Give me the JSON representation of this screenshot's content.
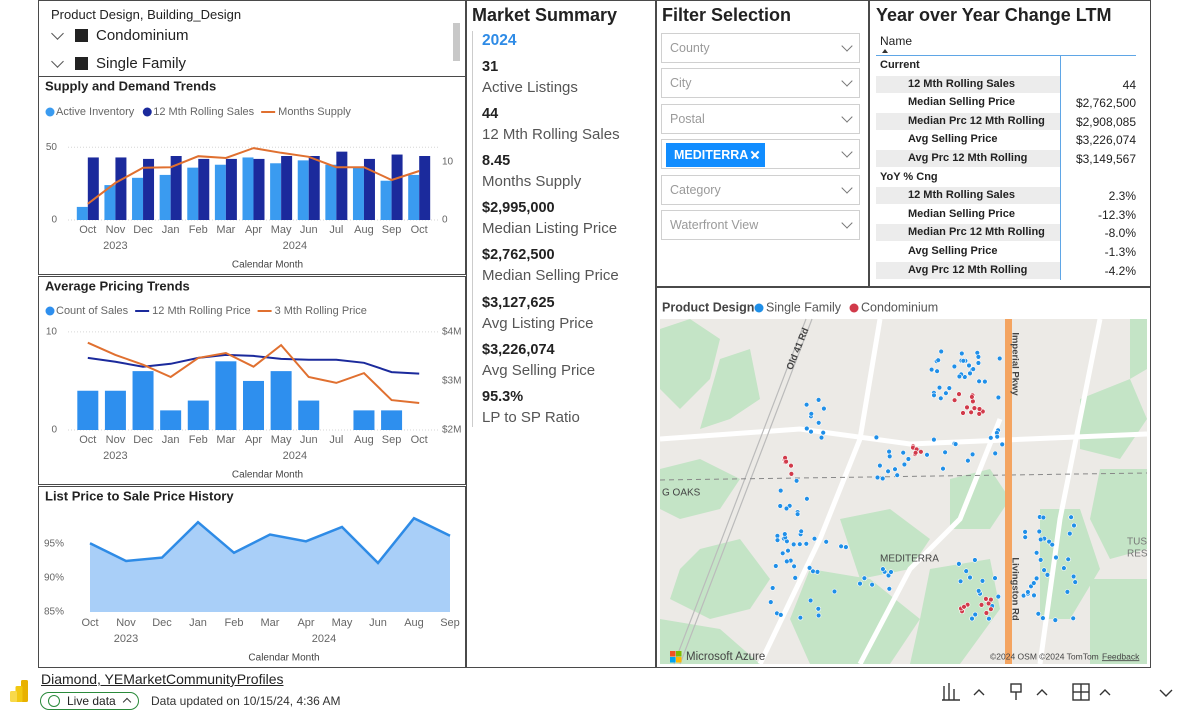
{
  "slicer": {
    "title": "Product Design, Building_Design",
    "items": [
      "Condominium",
      "Single Family"
    ]
  },
  "chart_data": [
    {
      "type": "combo",
      "title": "Supply and Demand Trends",
      "categories": [
        "Oct",
        "Nov",
        "Dec",
        "Jan",
        "Feb",
        "Mar",
        "Apr",
        "May",
        "Jun",
        "Jul",
        "Aug",
        "Sep",
        "Oct"
      ],
      "year_labels": [
        "2023",
        "2024"
      ],
      "x_label": "Calendar Month",
      "series": [
        {
          "name": "Active Inventory",
          "kind": "bar",
          "color": "#3a9bf0",
          "values": [
            9,
            24,
            29,
            31,
            36,
            38,
            43,
            39,
            41,
            38,
            36,
            27,
            31
          ]
        },
        {
          "name": "12 Mth Rolling Sales",
          "kind": "bar",
          "color": "#1b2a9c",
          "values": [
            43,
            43,
            42,
            44,
            42,
            42,
            42,
            44,
            44,
            47,
            42,
            45,
            44
          ]
        },
        {
          "name": "Months Supply",
          "kind": "line",
          "axis": "y2",
          "color": "#e07030",
          "values": [
            2.8,
            6.4,
            9.0,
            9.1,
            11.0,
            10.7,
            12.4,
            11.6,
            10.9,
            9.1,
            9.1,
            6.9,
            8.45
          ]
        }
      ],
      "ylim": [
        0,
        55
      ],
      "yticks": [
        0,
        50
      ],
      "y2lim": [
        0,
        13.8
      ],
      "y2ticks": [
        0,
        10
      ],
      "grid": true
    },
    {
      "type": "combo",
      "title": "Average Pricing Trends",
      "categories": [
        "Oct",
        "Nov",
        "Dec",
        "Jan",
        "Feb",
        "Mar",
        "Apr",
        "May",
        "Jun",
        "Jul",
        "Aug",
        "Sep",
        "Oct"
      ],
      "year_labels": [
        "2023",
        "2024"
      ],
      "x_label": "Calendar Month",
      "series": [
        {
          "name": "Count of Sales",
          "kind": "bar",
          "color": "#2e8fee",
          "values": [
            4,
            4,
            6,
            2,
            3,
            7,
            5,
            6,
            3,
            0,
            2,
            2,
            0
          ]
        },
        {
          "name": "12 Mth Rolling Price",
          "kind": "line",
          "axis": "y2",
          "color": "#1b2a9c",
          "values": [
            3470000,
            3390000,
            3290000,
            3350000,
            3470000,
            3530000,
            3510000,
            3450000,
            3430000,
            3430000,
            3370000,
            3180000,
            3149567
          ]
        },
        {
          "name": "3 Mth Rolling Price",
          "kind": "line",
          "axis": "y2",
          "color": "#e07030",
          "values": [
            3780000,
            3530000,
            3330000,
            3080000,
            3470000,
            3570000,
            3290000,
            3730000,
            3080000,
            2960000,
            3160000,
            2610000,
            2550000
          ]
        }
      ],
      "ylim": [
        0,
        10.7
      ],
      "yticks": [
        0,
        10
      ],
      "y2lim": [
        2000000,
        4140000
      ],
      "y2ticks": [
        {
          "value": 2000000,
          "label": "$2M"
        },
        {
          "value": 3000000,
          "label": "$3M"
        },
        {
          "value": 4000000,
          "label": "$4M"
        }
      ],
      "grid": true
    },
    {
      "type": "area",
      "title": "List Price to Sale Price History",
      "categories": [
        "Oct",
        "Nov",
        "Dec",
        "Jan",
        "Feb",
        "Mar",
        "Apr",
        "May",
        "Jun",
        "Aug",
        "Sep"
      ],
      "year_labels": [
        "2023",
        "2024"
      ],
      "x_label": "Calendar Month",
      "values": [
        95.1,
        92.5,
        93.0,
        98.2,
        93.7,
        96.4,
        95.4,
        97.5,
        92.2,
        98.8,
        96.2
      ],
      "color": "#2e8be6",
      "area_color": "#a9cff8",
      "ylim": [
        85,
        100
      ],
      "yticks": [
        {
          "value": 85,
          "label": "85%"
        },
        {
          "value": 90,
          "label": "90%"
        },
        {
          "value": 95,
          "label": "95%"
        }
      ],
      "grid": false
    }
  ],
  "market_summary": {
    "title": "Market Summary",
    "year": "2024",
    "items": [
      {
        "value": "31",
        "label": "Active Listings"
      },
      {
        "value": "44",
        "label": "12 Mth Rolling Sales"
      },
      {
        "value": "8.45",
        "label": "Months Supply"
      },
      {
        "value": "$2,995,000",
        "label": "Median Listing Price"
      },
      {
        "value": "$2,762,500",
        "label": "Median Selling Price"
      },
      {
        "value": "$3,127,625",
        "label": "Avg Listing Price"
      },
      {
        "value": "$3,226,074",
        "label": "Avg Selling Price"
      },
      {
        "value": "95.3%",
        "label": "LP to SP Ratio"
      }
    ]
  },
  "filter": {
    "title": "Filter Selection",
    "dropdowns": [
      {
        "placeholder": "County"
      },
      {
        "placeholder": "City"
      },
      {
        "placeholder": "Postal"
      },
      {
        "chip": "MEDITERRA"
      },
      {
        "placeholder": "Category"
      },
      {
        "placeholder": "Waterfront View"
      }
    ]
  },
  "yoy": {
    "title": "Year over Year Change LTM",
    "header": "Name",
    "groups": [
      {
        "name": "Current",
        "rows": [
          [
            "12 Mth Rolling Sales",
            "44"
          ],
          [
            "Median Selling Price",
            "$2,762,500"
          ],
          [
            "Median Prc 12 Mth Rolling",
            "$2,908,085"
          ],
          [
            "Avg Selling Price",
            "$3,226,074"
          ],
          [
            "Avg Prc 12 Mth Rolling",
            "$3,149,567"
          ]
        ]
      },
      {
        "name": "YoY % Cng",
        "rows": [
          [
            "12 Mth Rolling Sales",
            "2.3%"
          ],
          [
            "Median Selling Price",
            "-12.3%"
          ],
          [
            "Median Prc 12 Mth Rolling",
            "-8.0%"
          ],
          [
            "Avg Selling Price",
            "-1.3%"
          ],
          [
            "Avg Prc 12 Mth Rolling",
            "-4.2%"
          ]
        ]
      }
    ]
  },
  "map": {
    "title": "Product Design",
    "legend": [
      {
        "name": "Single Family",
        "color": "#1f8fe8"
      },
      {
        "name": "Condominium",
        "color": "#d13a4a"
      }
    ],
    "labels": [
      "Old 41 Rd",
      "Imperial Pkwy",
      "G OAKS",
      "MEDITERRA",
      "Livingston Rd",
      "TUS",
      "RES"
    ],
    "attribution": "Microsoft Azure",
    "copyright": "©2024 OSM ©2024 TomTom",
    "feedback": "Feedback"
  },
  "footer": {
    "report": "Diamond, YEMarketCommunityProfiles",
    "badge": "Live data",
    "updated": "Data updated on 10/15/24, 4:36 AM"
  }
}
